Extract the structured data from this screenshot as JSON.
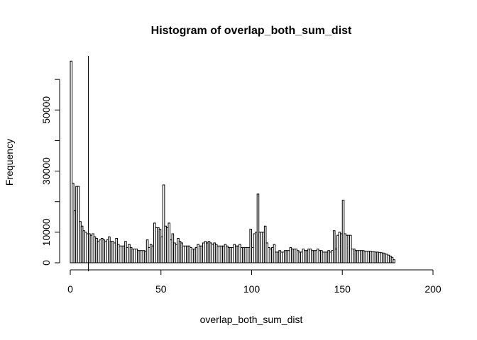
{
  "chart_data": {
    "type": "bar",
    "title": "Histogram of overlap_both_sum_dist",
    "xlabel": "overlap_both_sum_dist",
    "ylabel": "Frequency",
    "xlim": [
      0,
      200
    ],
    "ylim": [
      0,
      70000
    ],
    "xticks": [
      0,
      50,
      100,
      150,
      200
    ],
    "yticks": [
      0,
      10000,
      30000,
      50000
    ],
    "bin_width": 1,
    "vline_x": 10,
    "bins_start": 0,
    "values": [
      66000,
      26000,
      17000,
      25000,
      25000,
      13500,
      12000,
      10500,
      10000,
      9500,
      9500,
      9000,
      9500,
      8500,
      8000,
      7000,
      7500,
      8000,
      7500,
      7000,
      7500,
      8500,
      7000,
      7000,
      6500,
      8000,
      6000,
      5500,
      5500,
      5500,
      7000,
      5000,
      6000,
      5000,
      4500,
      4500,
      4500,
      4000,
      4000,
      4000,
      4000,
      3800,
      7500,
      5000,
      6000,
      5500,
      13000,
      11500,
      11500,
      11000,
      8500,
      25500,
      12000,
      11500,
      13000,
      7500,
      9500,
      6500,
      6000,
      8000,
      7000,
      6500,
      5500,
      5500,
      5500,
      5500,
      5000,
      4500,
      4500,
      5000,
      6000,
      5500,
      5500,
      6500,
      7000,
      6500,
      7000,
      6500,
      6000,
      6500,
      6000,
      5500,
      5500,
      5500,
      5500,
      6000,
      5500,
      5000,
      5000,
      5000,
      6000,
      5500,
      5500,
      6000,
      5000,
      5000,
      5000,
      5000,
      5000,
      11000,
      5000,
      9500,
      10000,
      22500,
      10000,
      10000,
      10000,
      12000,
      6500,
      5000,
      4500,
      5000,
      6000,
      3500,
      3500,
      4000,
      3500,
      3500,
      4000,
      4000,
      4000,
      5000,
      4500,
      4500,
      4500,
      4000,
      3500,
      3500,
      4500,
      4000,
      4000,
      4500,
      4500,
      4000,
      4000,
      4000,
      4500,
      4000,
      4000,
      3500,
      3500,
      3500,
      4000,
      3500,
      4000,
      10500,
      4500,
      9000,
      10000,
      9500,
      20500,
      9500,
      9000,
      9000,
      9000,
      4500,
      4500,
      4000,
      4000,
      4000,
      4000,
      4000,
      3800,
      3800,
      3800,
      3800,
      3600,
      3600,
      3500,
      3500,
      3400,
      3300,
      3200,
      3000,
      2800,
      2500,
      2200,
      1800,
      1000
    ]
  }
}
